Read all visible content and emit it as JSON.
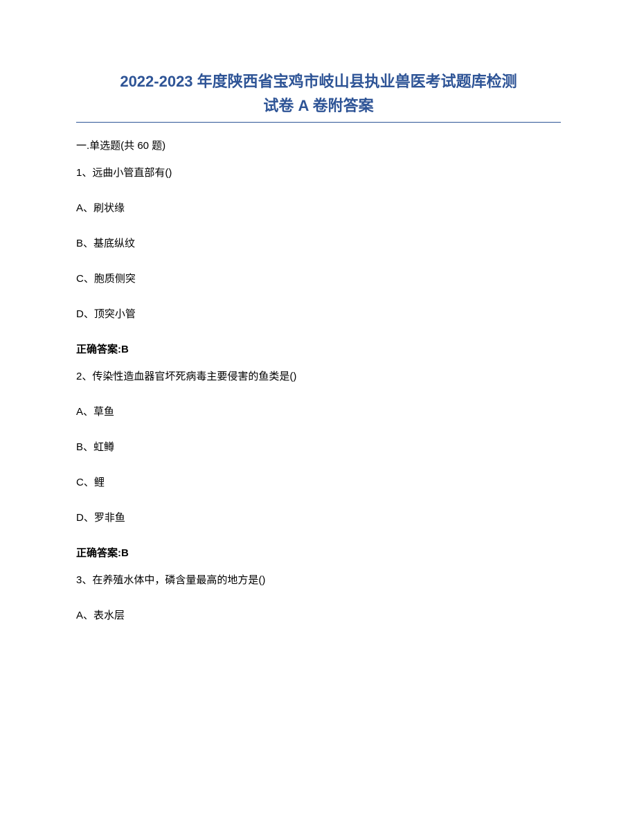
{
  "title": {
    "line1": "2022-2023 年度陕西省宝鸡市岐山县执业兽医考试题库检测",
    "line2": "试卷 A 卷附答案",
    "color": "#2e5496",
    "fontsize": 22
  },
  "divider_color": "#2e5496",
  "section_header": "一.单选题(共 60 题)",
  "questions": [
    {
      "stem": "1、远曲小管直部有()",
      "options": [
        "A、刷状缘",
        "B、基底纵纹",
        "C、胞质侧突",
        "D、顶突小管"
      ],
      "answer": "正确答案:B"
    },
    {
      "stem": "2、传染性造血器官坏死病毒主要侵害的鱼类是()",
      "options": [
        "A、草鱼",
        "B、虹鳟",
        "C、鲤",
        "D、罗非鱼"
      ],
      "answer": "正确答案:B"
    },
    {
      "stem": "3、在养殖水体中，磷含量最高的地方是()",
      "options": [
        "A、表水层"
      ],
      "answer": null
    }
  ],
  "text_color": "#000000",
  "background_color": "#ffffff",
  "body_fontsize": 15
}
